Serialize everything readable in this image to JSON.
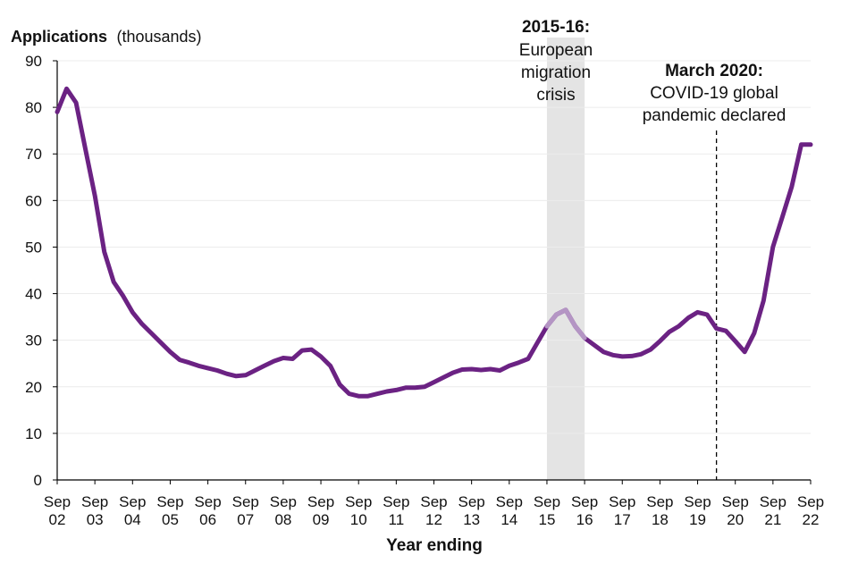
{
  "chart_data": {
    "type": "line",
    "ylabel_bold": "Applications",
    "ylabel_unit": "(thousands)",
    "xlabel": "Year ending",
    "ylim": [
      0,
      90
    ],
    "yticks": [
      0,
      10,
      20,
      30,
      40,
      50,
      60,
      70,
      80,
      90
    ],
    "x_range": [
      2002.75,
      2022.75
    ],
    "xtick_labels": [
      {
        "top": "Sep",
        "bottom": "02"
      },
      {
        "top": "Sep",
        "bottom": "03"
      },
      {
        "top": "Sep",
        "bottom": "04"
      },
      {
        "top": "Sep",
        "bottom": "05"
      },
      {
        "top": "Sep",
        "bottom": "06"
      },
      {
        "top": "Sep",
        "bottom": "07"
      },
      {
        "top": "Sep",
        "bottom": "08"
      },
      {
        "top": "Sep",
        "bottom": "09"
      },
      {
        "top": "Sep",
        "bottom": "10"
      },
      {
        "top": "Sep",
        "bottom": "11"
      },
      {
        "top": "Sep",
        "bottom": "12"
      },
      {
        "top": "Sep",
        "bottom": "13"
      },
      {
        "top": "Sep",
        "bottom": "14"
      },
      {
        "top": "Sep",
        "bottom": "15"
      },
      {
        "top": "Sep",
        "bottom": "16"
      },
      {
        "top": "Sep",
        "bottom": "17"
      },
      {
        "top": "Sep",
        "bottom": "18"
      },
      {
        "top": "Sep",
        "bottom": "19"
      },
      {
        "top": "Sep",
        "bottom": "20"
      },
      {
        "top": "Sep",
        "bottom": "21"
      },
      {
        "top": "Sep",
        "bottom": "22"
      }
    ],
    "series": [
      {
        "name": "Applications",
        "color": "#6b2283",
        "highlight_color": "#b495c4",
        "highlight_range": [
          2015.75,
          2016.75
        ],
        "x": [
          2002.75,
          2003.0,
          2003.25,
          2003.5,
          2003.75,
          2004.0,
          2004.25,
          2004.5,
          2004.75,
          2005.0,
          2005.25,
          2005.5,
          2005.75,
          2006.0,
          2006.25,
          2006.5,
          2006.75,
          2007.0,
          2007.25,
          2007.5,
          2007.75,
          2008.0,
          2008.25,
          2008.5,
          2008.75,
          2009.0,
          2009.25,
          2009.5,
          2009.75,
          2010.0,
          2010.25,
          2010.5,
          2010.75,
          2011.0,
          2011.25,
          2011.5,
          2011.75,
          2012.0,
          2012.25,
          2012.5,
          2012.75,
          2013.0,
          2013.25,
          2013.5,
          2013.75,
          2014.0,
          2014.25,
          2014.5,
          2014.75,
          2015.0,
          2015.25,
          2015.5,
          2015.75,
          2016.0,
          2016.25,
          2016.5,
          2016.75,
          2017.0,
          2017.25,
          2017.5,
          2017.75,
          2018.0,
          2018.25,
          2018.5,
          2018.75,
          2019.0,
          2019.25,
          2019.5,
          2019.75,
          2020.0,
          2020.25,
          2020.5,
          2020.75,
          2021.0,
          2021.25,
          2021.5,
          2021.75,
          2022.0,
          2022.25,
          2022.5,
          2022.75
        ],
        "values": [
          79,
          84,
          81,
          71,
          61,
          49,
          42.5,
          39.5,
          36,
          33.5,
          31.5,
          29.5,
          27.5,
          25.8,
          25.2,
          24.5,
          24,
          23.5,
          22.8,
          22.3,
          22.5,
          23.5,
          24.5,
          25.5,
          26.2,
          26,
          27.8,
          28,
          26.5,
          24.5,
          20.5,
          18.5,
          18,
          18,
          18.5,
          19,
          19.3,
          19.8,
          19.8,
          20,
          21,
          22,
          23,
          23.7,
          23.8,
          23.6,
          23.8,
          23.5,
          24.5,
          25.2,
          26,
          29.5,
          33,
          35.5,
          36.5,
          33,
          30.5,
          29,
          27.5,
          26.8,
          26.5,
          26.6,
          27,
          28,
          29.8,
          31.8,
          33,
          34.8,
          36,
          35.5,
          32.5,
          32,
          29.8,
          27.5,
          31.5,
          38.5,
          50,
          56.5,
          63,
          72,
          72
        ]
      }
    ],
    "annotations": [
      {
        "range": [
          2015.75,
          2016.75
        ],
        "label_bold": "2015-16",
        "label_suffix": ":",
        "lines": [
          "European",
          "migration",
          "crisis"
        ]
      },
      {
        "x": 2020.25,
        "style": "dashed",
        "label_bold": "March 2020:",
        "lines": [
          "COVID-19 global",
          "pandemic declared"
        ]
      }
    ]
  }
}
